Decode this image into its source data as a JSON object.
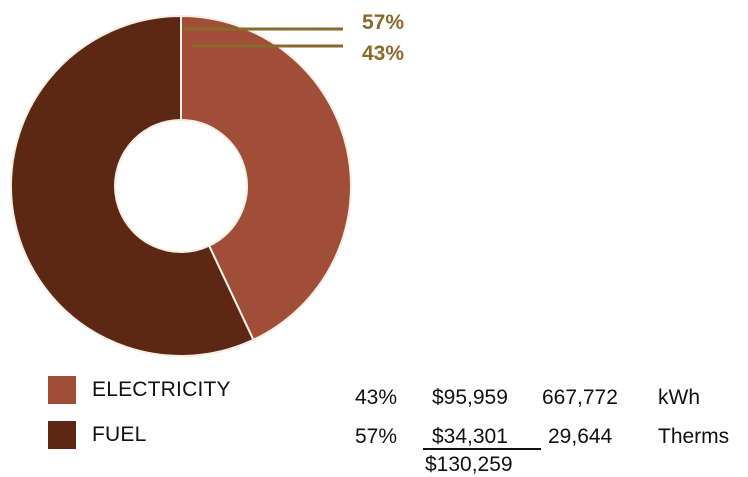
{
  "chart_data": {
    "type": "pie",
    "series": [
      {
        "label": "ELECTRICITY",
        "percent_label": "43%",
        "value": 43,
        "color": "#a04e37"
      },
      {
        "label": "FUEL",
        "percent_label": "57%",
        "value": 57,
        "color": "#5c2713"
      }
    ],
    "callout_color": "#8a6a2c"
  },
  "table": {
    "rows": [
      {
        "percent": "43%",
        "cost": "$95,959",
        "quantity": "667,772",
        "unit": "kWh"
      },
      {
        "percent": "57%",
        "cost": "$34,301",
        "quantity": "29,644",
        "unit": "Therms"
      }
    ],
    "total": "$130,259"
  }
}
